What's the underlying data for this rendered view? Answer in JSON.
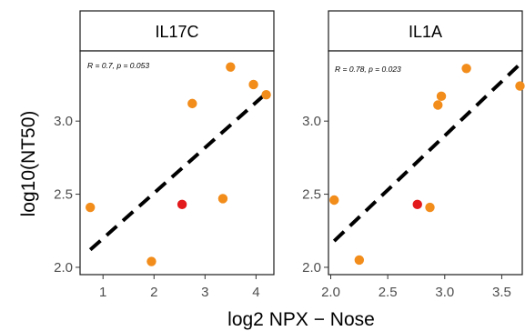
{
  "chart_data": {
    "type": "scatter",
    "xlabel": "log2 NPX − Nose",
    "ylabel": "log10(NT50)",
    "colors": {
      "point": "#F28C1A",
      "highlight": "#E31A1C",
      "regression": "#000000"
    },
    "panels": [
      {
        "strip": "IL17C",
        "annotation": "R = 0.7, p = 0.053",
        "xlim": [
          0.55,
          4.35
        ],
        "ylim": [
          1.95,
          3.48
        ],
        "x_ticks": [
          1,
          2,
          3,
          4
        ],
        "x_tick_labels": [
          "1",
          "2",
          "3",
          "4"
        ],
        "y_ticks": [
          2.0,
          2.5,
          3.0
        ],
        "y_tick_labels": [
          "2.0",
          "2.5",
          "3.0"
        ],
        "points": [
          {
            "x": 0.75,
            "y": 2.41,
            "highlight": false
          },
          {
            "x": 1.95,
            "y": 2.04,
            "highlight": false
          },
          {
            "x": 2.55,
            "y": 2.43,
            "highlight": true
          },
          {
            "x": 2.75,
            "y": 3.12,
            "highlight": false
          },
          {
            "x": 3.35,
            "y": 2.47,
            "highlight": false
          },
          {
            "x": 3.5,
            "y": 3.37,
            "highlight": false
          },
          {
            "x": 3.95,
            "y": 3.25,
            "highlight": false
          },
          {
            "x": 4.2,
            "y": 3.18,
            "highlight": false
          }
        ],
        "regression": {
          "x0": 0.75,
          "y0": 2.12,
          "x1": 4.2,
          "y1": 3.19
        }
      },
      {
        "strip": "IL1A",
        "annotation": "R = 0.78, p = 0.023",
        "xlim": [
          1.98,
          3.68
        ],
        "ylim": [
          1.95,
          3.48
        ],
        "x_ticks": [
          2.0,
          2.5,
          3.0,
          3.5
        ],
        "x_tick_labels": [
          "2.0",
          "2.5",
          "3.0",
          "3.5"
        ],
        "y_ticks": [
          2.0,
          2.5,
          3.0
        ],
        "y_tick_labels": [
          "2.0",
          "2.5",
          "3.0"
        ],
        "points": [
          {
            "x": 2.03,
            "y": 2.46,
            "highlight": false
          },
          {
            "x": 2.25,
            "y": 2.05,
            "highlight": false
          },
          {
            "x": 2.76,
            "y": 2.43,
            "highlight": true
          },
          {
            "x": 2.87,
            "y": 2.41,
            "highlight": false
          },
          {
            "x": 2.94,
            "y": 3.11,
            "highlight": false
          },
          {
            "x": 2.97,
            "y": 3.17,
            "highlight": false
          },
          {
            "x": 3.19,
            "y": 3.36,
            "highlight": false
          },
          {
            "x": 3.66,
            "y": 3.24,
            "highlight": false
          }
        ],
        "regression": {
          "x0": 2.03,
          "y0": 2.18,
          "x1": 3.66,
          "y1": 3.39
        }
      }
    ]
  }
}
